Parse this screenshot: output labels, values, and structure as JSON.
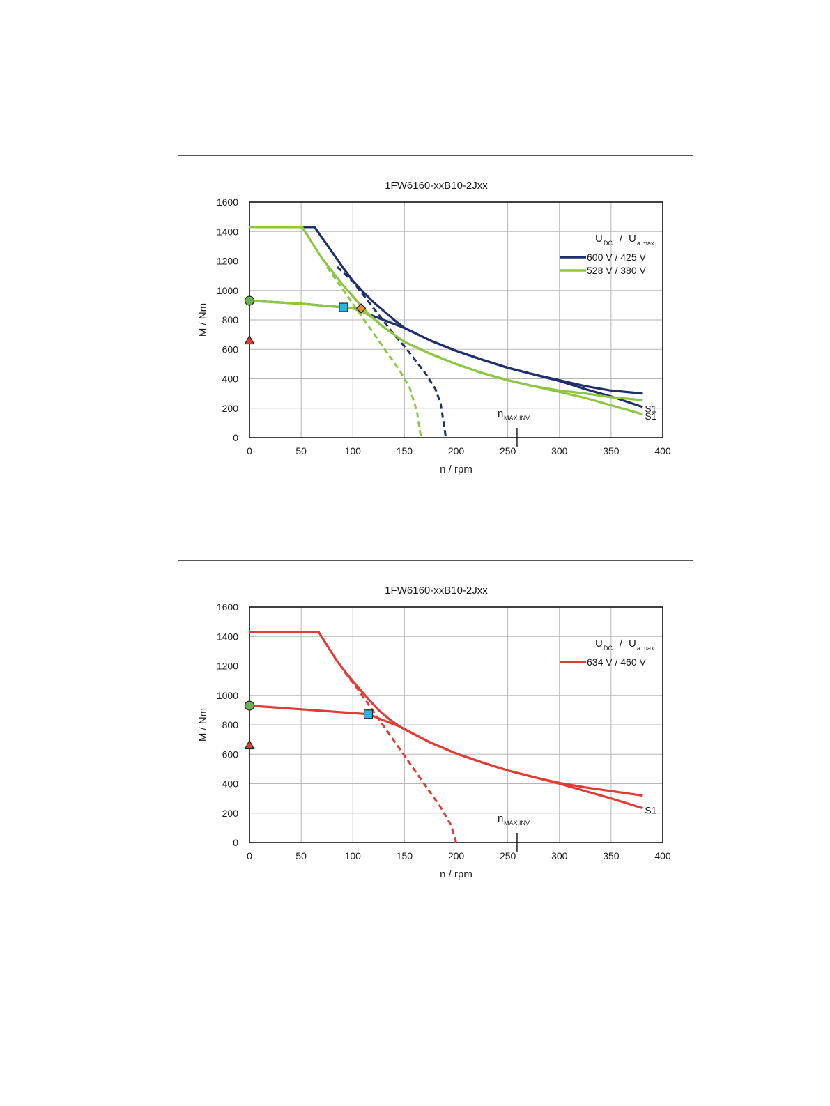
{
  "chart_data": [
    {
      "type": "line",
      "title": "1FW6160-xxB10-2Jxx",
      "xlabel": "n / rpm",
      "ylabel": "M / Nm",
      "xlim": [
        0,
        400
      ],
      "ylim": [
        0,
        1600
      ],
      "xticks": [
        0,
        50,
        100,
        150,
        200,
        250,
        300,
        350,
        400
      ],
      "yticks": [
        0,
        200,
        400,
        600,
        800,
        1000,
        1200,
        1400,
        1600
      ],
      "grid": true,
      "legend": {
        "header_main": "U",
        "header_sub": "DC",
        "header_sep": "/",
        "header_main2": "U",
        "header_sub2": "a max",
        "position": "top-right"
      },
      "nmax_label": {
        "main": "n",
        "sub": "MAX,INV",
        "x": 259
      },
      "series": [
        {
          "name": "600 V / 425 V",
          "color": "#1f2f6e",
          "max_curve": [
            [
              0,
              1430
            ],
            [
              63,
              1430
            ],
            [
              70,
              1360
            ],
            [
              80,
              1260
            ],
            [
              90,
              1160
            ],
            [
              100,
              1065
            ],
            [
              110,
              990
            ],
            [
              120,
              920
            ],
            [
              130,
              860
            ],
            [
              140,
              800
            ],
            [
              150,
              745
            ],
            [
              175,
              660
            ],
            [
              200,
              590
            ],
            [
              225,
              530
            ],
            [
              250,
              475
            ],
            [
              275,
              430
            ],
            [
              300,
              390
            ],
            [
              325,
              350
            ],
            [
              350,
              320
            ],
            [
              380,
              300
            ]
          ],
          "s1_curve": [
            [
              0,
              930
            ],
            [
              50,
              910
            ],
            [
              100,
              880
            ],
            [
              150,
              745
            ],
            [
              175,
              660
            ],
            [
              200,
              590
            ],
            [
              225,
              530
            ],
            [
              250,
              475
            ],
            [
              275,
              430
            ],
            [
              300,
              385
            ],
            [
              325,
              330
            ],
            [
              350,
              280
            ],
            [
              380,
              210
            ]
          ],
          "dashed_curve": [
            [
              85,
              1160
            ],
            [
              100,
              1060
            ],
            [
              110,
              970
            ],
            [
              120,
              880
            ],
            [
              130,
              790
            ],
            [
              140,
              700
            ],
            [
              150,
              620
            ],
            [
              160,
              530
            ],
            [
              170,
              440
            ],
            [
              180,
              330
            ],
            [
              185,
              230
            ],
            [
              188,
              100
            ],
            [
              190,
              0
            ]
          ],
          "s1_label": "S1"
        },
        {
          "name": "528 V / 380 V",
          "color": "#8dc63f",
          "max_curve": [
            [
              0,
              1430
            ],
            [
              51,
              1430
            ],
            [
              60,
              1330
            ],
            [
              70,
              1220
            ],
            [
              80,
              1130
            ],
            [
              90,
              1040
            ],
            [
              100,
              960
            ],
            [
              110,
              880
            ],
            [
              120,
              810
            ],
            [
              130,
              750
            ],
            [
              140,
              700
            ],
            [
              150,
              650
            ],
            [
              175,
              570
            ],
            [
              200,
              500
            ],
            [
              225,
              440
            ],
            [
              250,
              390
            ],
            [
              275,
              350
            ],
            [
              300,
              320
            ],
            [
              325,
              300
            ],
            [
              350,
              275
            ],
            [
              380,
              255
            ]
          ],
          "s1_curve": [
            [
              0,
              930
            ],
            [
              50,
              910
            ],
            [
              100,
              880
            ],
            [
              110,
              855
            ],
            [
              120,
              810
            ],
            [
              130,
              750
            ],
            [
              140,
              700
            ],
            [
              150,
              650
            ],
            [
              175,
              570
            ],
            [
              200,
              500
            ],
            [
              225,
              440
            ],
            [
              250,
              390
            ],
            [
              275,
              350
            ],
            [
              300,
              310
            ],
            [
              325,
              270
            ],
            [
              350,
              220
            ],
            [
              380,
              160
            ]
          ],
          "dashed_curve": [
            [
              75,
              1160
            ],
            [
              85,
              1060
            ],
            [
              95,
              960
            ],
            [
              105,
              860
            ],
            [
              115,
              760
            ],
            [
              125,
              660
            ],
            [
              135,
              560
            ],
            [
              145,
              460
            ],
            [
              155,
              340
            ],
            [
              162,
              180
            ],
            [
              166,
              0
            ]
          ],
          "s1_label": "S1"
        }
      ],
      "markers": [
        {
          "shape": "circle",
          "x": 0,
          "y": 930,
          "color": "#6ab04c"
        },
        {
          "shape": "triangle",
          "x": 0,
          "y": 660,
          "color": "#e03c31"
        },
        {
          "shape": "square",
          "x": 91,
          "y": 885,
          "color": "#29b6e6"
        },
        {
          "shape": "diamond",
          "x": 108,
          "y": 878,
          "color": "#f28c28"
        }
      ]
    },
    {
      "type": "line",
      "title": "1FW6160-xxB10-2Jxx",
      "xlabel": "n / rpm",
      "ylabel": "M / Nm",
      "xlim": [
        0,
        400
      ],
      "ylim": [
        0,
        1600
      ],
      "xticks": [
        0,
        50,
        100,
        150,
        200,
        250,
        300,
        350,
        400
      ],
      "yticks": [
        0,
        200,
        400,
        600,
        800,
        1000,
        1200,
        1400,
        1600
      ],
      "grid": true,
      "legend": {
        "header_main": "U",
        "header_sub": "DC",
        "header_sep": "/",
        "header_main2": "U",
        "header_sub2": "a max",
        "position": "top-right"
      },
      "nmax_label": {
        "main": "n",
        "sub": "MAX,INV",
        "x": 259
      },
      "series": [
        {
          "name": "634 V / 460 V",
          "color": "#e23b36",
          "max_curve": [
            [
              0,
              1430
            ],
            [
              67,
              1430
            ],
            [
              75,
              1340
            ],
            [
              85,
              1230
            ],
            [
              95,
              1140
            ],
            [
              105,
              1055
            ],
            [
              115,
              975
            ],
            [
              125,
              900
            ],
            [
              135,
              840
            ],
            [
              145,
              790
            ],
            [
              150,
              770
            ],
            [
              175,
              680
            ],
            [
              200,
              605
            ],
            [
              225,
              545
            ],
            [
              250,
              490
            ],
            [
              275,
              445
            ],
            [
              300,
              405
            ],
            [
              325,
              375
            ],
            [
              350,
              350
            ],
            [
              380,
              320
            ]
          ],
          "s1_curve": [
            [
              0,
              930
            ],
            [
              50,
              905
            ],
            [
              100,
              880
            ],
            [
              115,
              872
            ],
            [
              130,
              830
            ],
            [
              145,
              790
            ],
            [
              150,
              770
            ],
            [
              175,
              680
            ],
            [
              200,
              605
            ],
            [
              225,
              545
            ],
            [
              250,
              490
            ],
            [
              275,
              445
            ],
            [
              300,
              400
            ],
            [
              325,
              350
            ],
            [
              350,
              300
            ],
            [
              380,
              235
            ]
          ],
          "dashed_curve": [
            [
              92,
              1160
            ],
            [
              105,
              1040
            ],
            [
              115,
              940
            ],
            [
              125,
              840
            ],
            [
              135,
              740
            ],
            [
              145,
              640
            ],
            [
              155,
              540
            ],
            [
              165,
              440
            ],
            [
              175,
              340
            ],
            [
              185,
              240
            ],
            [
              195,
              120
            ],
            [
              200,
              0
            ]
          ],
          "s1_label": "S1"
        }
      ],
      "markers": [
        {
          "shape": "circle",
          "x": 0,
          "y": 930,
          "color": "#6ab04c"
        },
        {
          "shape": "triangle",
          "x": 0,
          "y": 660,
          "color": "#e03c31"
        },
        {
          "shape": "square",
          "x": 115,
          "y": 872,
          "color": "#29b6e6"
        }
      ]
    }
  ]
}
